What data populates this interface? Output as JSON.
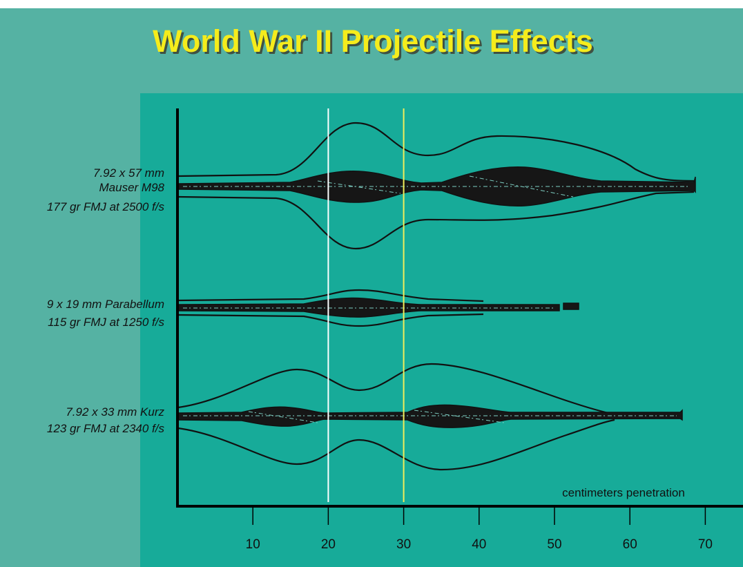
{
  "chart_data": {
    "type": "wound-profile",
    "title": "World War II Projectile Effects",
    "xlabel": "centimeters penetration",
    "xlim": [
      0,
      75
    ],
    "xticks": [
      10,
      20,
      30,
      40,
      50,
      60,
      70
    ],
    "reference_lines": [
      {
        "value": 20,
        "color": "#ffffff"
      },
      {
        "value": 30,
        "color": "#f2ee5a"
      }
    ],
    "profiles": [
      {
        "lines": [
          "7.92 x 57 mm",
          "Mauser M98",
          "177 gr FMJ at 2500 f/s"
        ]
      },
      {
        "lines": [
          "9 x 19 mm Parabellum",
          "115 gr FMJ at 1250 f/s"
        ]
      },
      {
        "lines": [
          "7.92 x 33 mm Kurz",
          "123 gr FMJ at 2340 f/s"
        ]
      }
    ]
  }
}
